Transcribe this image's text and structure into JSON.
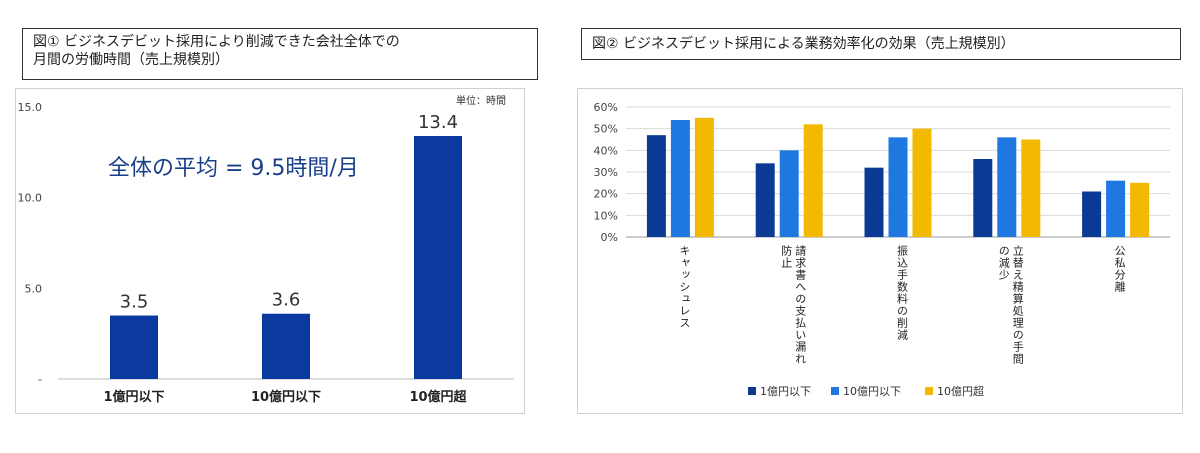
{
  "chart_data": [
    {
      "type": "bar",
      "title": "図① ビジネスデビット採用により削減できた会社全体での月間の労働時間（売上規模別）",
      "title_lines": [
        "図① ビジネスデビット採用により削減できた会社全体での",
        "月間の労働時間（売上規模別）"
      ],
      "unit_note": "単位：時間",
      "annotation": "全体の平均 = 9.5時間/月",
      "categories": [
        "1億円以下",
        "10億円以下",
        "10億円超"
      ],
      "values": [
        3.5,
        3.6,
        13.4
      ],
      "data_labels": [
        "3.5",
        "3.6",
        "13.4"
      ],
      "ylim": [
        0,
        15
      ],
      "yticks": [
        "-",
        "5.0",
        "10.0",
        "15.0"
      ],
      "grid": false,
      "bar_color": "#0a3aa0"
    },
    {
      "type": "bar",
      "title": "図② ビジネスデビット採用による業務効率化の効果（売上規模別）",
      "categories": [
        "キャッシュレス",
        "請求書への支払い漏れ防止",
        "振込手数料の削減",
        "立替え精算処理の手間の減少",
        "公私分離"
      ],
      "category_lines": [
        [
          "キャッシュレス"
        ],
        [
          "請求書への支払い漏れ",
          "防止"
        ],
        [
          "振込手数料の削減"
        ],
        [
          "立替え精算処理の手間",
          "の減少"
        ],
        [
          "公私分離"
        ]
      ],
      "series": [
        {
          "name": "1億円以下",
          "values": [
            47,
            34,
            32,
            36,
            21
          ],
          "color": "#0a3a94"
        },
        {
          "name": "10億円以下",
          "values": [
            54,
            40,
            46,
            46,
            26
          ],
          "color": "#1f78e0"
        },
        {
          "name": "10億円超",
          "values": [
            55,
            52,
            50,
            45,
            25
          ],
          "color": "#f3b800"
        }
      ],
      "ylim": [
        0,
        60
      ],
      "yticks": [
        "0%",
        "10%",
        "20%",
        "30%",
        "40%",
        "50%",
        "60%"
      ],
      "grid": true,
      "legend_position": "bottom"
    }
  ]
}
